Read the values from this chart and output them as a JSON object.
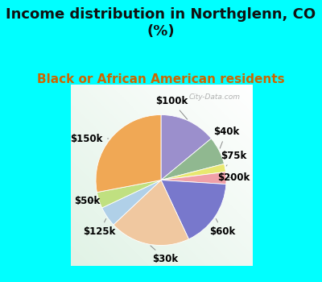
{
  "title": "Income distribution in Northglenn, CO\n(%)",
  "subtitle": "Black or African American residents",
  "bg_cyan": "#00FFFF",
  "bg_chart_color": "#c8eee0",
  "watermark": "City-Data.com",
  "slices": [
    {
      "label": "$100k",
      "value": 14,
      "color": "#9b8fcc"
    },
    {
      "label": "$40k",
      "value": 7,
      "color": "#90b890"
    },
    {
      "label": "$75k",
      "value": 2,
      "color": "#e8e870"
    },
    {
      "label": "$200k",
      "value": 3,
      "color": "#f0a0a8"
    },
    {
      "label": "$60k",
      "value": 17,
      "color": "#7878cc"
    },
    {
      "label": "$30k",
      "value": 20,
      "color": "#f0c8a0"
    },
    {
      "label": "$125k",
      "value": 5,
      "color": "#b0d0e8"
    },
    {
      "label": "$50k",
      "value": 4,
      "color": "#c0e080"
    },
    {
      "label": "$150k",
      "value": 28,
      "color": "#f0a855"
    }
  ],
  "start_angle": 90,
  "counterclock": false,
  "title_fontsize": 13,
  "subtitle_fontsize": 11,
  "label_fontsize": 8.5
}
